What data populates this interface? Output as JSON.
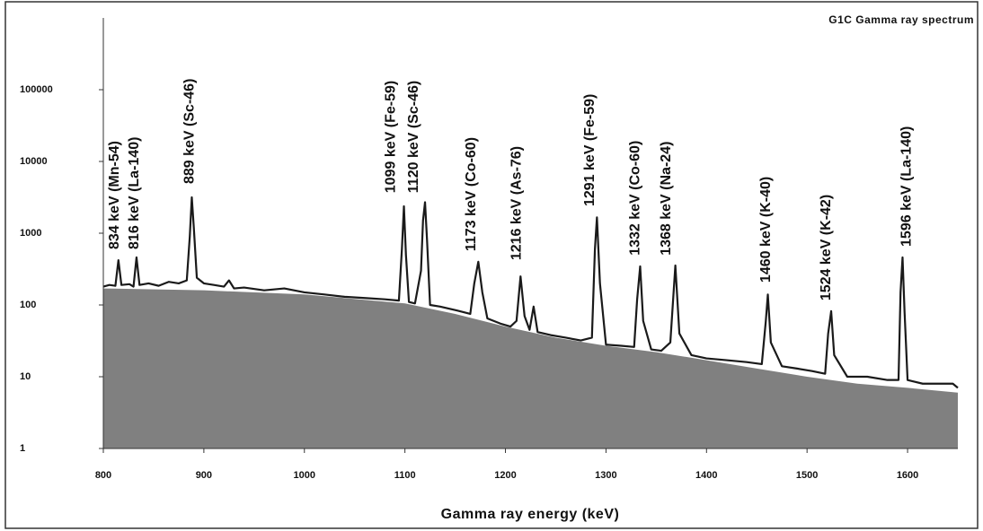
{
  "chart_data": {
    "type": "line",
    "title": "G1C Gamma ray spectrum",
    "x_label": "Gamma ray energy (keV)",
    "xlim": [
      800,
      1650
    ],
    "xticks": [
      800,
      900,
      1000,
      1100,
      1200,
      1300,
      1400,
      1500,
      1600
    ],
    "ylim": [
      1,
      1000000
    ],
    "yticks": [
      1,
      10,
      100,
      1000,
      10000,
      100000
    ],
    "log_y": true,
    "grid": false,
    "series": [
      {
        "type": "area",
        "color": "#808080",
        "x": [
          800,
          900,
          1000,
          1100,
          1150,
          1200,
          1250,
          1300,
          1350,
          1400,
          1450,
          1500,
          1550,
          1600,
          1650
        ],
        "values": [
          170,
          160,
          140,
          105,
          75,
          50,
          35,
          27,
          22,
          17,
          13,
          10,
          8,
          7,
          6
        ]
      },
      {
        "type": "line",
        "color": "#1a1a1a",
        "x": [
          800,
          806,
          812,
          815,
          818,
          826,
          830,
          833,
          836,
          845,
          855,
          865,
          875,
          883,
          886,
          888,
          890,
          893,
          900,
          910,
          920,
          925,
          930,
          940,
          960,
          980,
          1000,
          1020,
          1040,
          1060,
          1080,
          1094,
          1097,
          1099,
          1101,
          1104,
          1110,
          1116,
          1118,
          1120,
          1122,
          1125,
          1135,
          1150,
          1165,
          1169,
          1173,
          1177,
          1182,
          1195,
          1205,
          1211,
          1215,
          1219,
          1224,
          1228,
          1232,
          1245,
          1260,
          1275,
          1286,
          1289,
          1291,
          1294,
          1300,
          1315,
          1328,
          1331,
          1334,
          1337,
          1345,
          1355,
          1364,
          1369,
          1373,
          1385,
          1400,
          1420,
          1440,
          1455,
          1459,
          1461,
          1464,
          1475,
          1490,
          1505,
          1518,
          1521,
          1524,
          1527,
          1540,
          1560,
          1580,
          1591,
          1593,
          1595,
          1597,
          1600,
          1615,
          1630,
          1645,
          1650
        ],
        "values": [
          180,
          190,
          185,
          420,
          190,
          195,
          180,
          460,
          190,
          200,
          185,
          210,
          200,
          220,
          900,
          3160,
          1200,
          240,
          200,
          190,
          180,
          220,
          170,
          175,
          160,
          170,
          150,
          140,
          130,
          125,
          120,
          115,
          600,
          2370,
          500,
          110,
          105,
          300,
          1500,
          2700,
          800,
          100,
          95,
          85,
          75,
          200,
          400,
          150,
          65,
          55,
          50,
          60,
          250,
          70,
          45,
          95,
          42,
          38,
          35,
          32,
          35,
          600,
          1660,
          200,
          28,
          27,
          26,
          120,
          345,
          60,
          24,
          23,
          30,
          355,
          40,
          20,
          18,
          17,
          16,
          15,
          60,
          140,
          30,
          14,
          13,
          12,
          11,
          40,
          82,
          20,
          10,
          10,
          9,
          9,
          150,
          460,
          80,
          9,
          8,
          8,
          8,
          7
        ]
      }
    ],
    "annotations": [
      {
        "text": "834 keV (Mn-54)",
        "x": 815,
        "y": 596
      },
      {
        "text": "816 keV (La-140)",
        "x": 835,
        "y": 596
      },
      {
        "text": "889 keV (Sc-46)",
        "x": 890,
        "y": 4870
      },
      {
        "text": "1099 keV (Fe-59)",
        "x": 1090,
        "y": 3630
      },
      {
        "text": "1120 keV (Sc-46)",
        "x": 1113,
        "y": 3630
      },
      {
        "text": "1173 keV (Co-60)",
        "x": 1170,
        "y": 560
      },
      {
        "text": "1216 keV (As-76)",
        "x": 1215,
        "y": 420
      },
      {
        "text": "1291 keV (Fe-59)",
        "x": 1288,
        "y": 2370
      },
      {
        "text": "1332 keV (Co-60)",
        "x": 1333,
        "y": 490
      },
      {
        "text": "1368 keV (Na-24)",
        "x": 1364,
        "y": 490
      },
      {
        "text": "1460 keV (K-40)",
        "x": 1463,
        "y": 205
      },
      {
        "text": "1524 keV (K-42)",
        "x": 1523,
        "y": 115
      },
      {
        "text": "1596 keV (La-140)",
        "x": 1603,
        "y": 650
      }
    ]
  }
}
